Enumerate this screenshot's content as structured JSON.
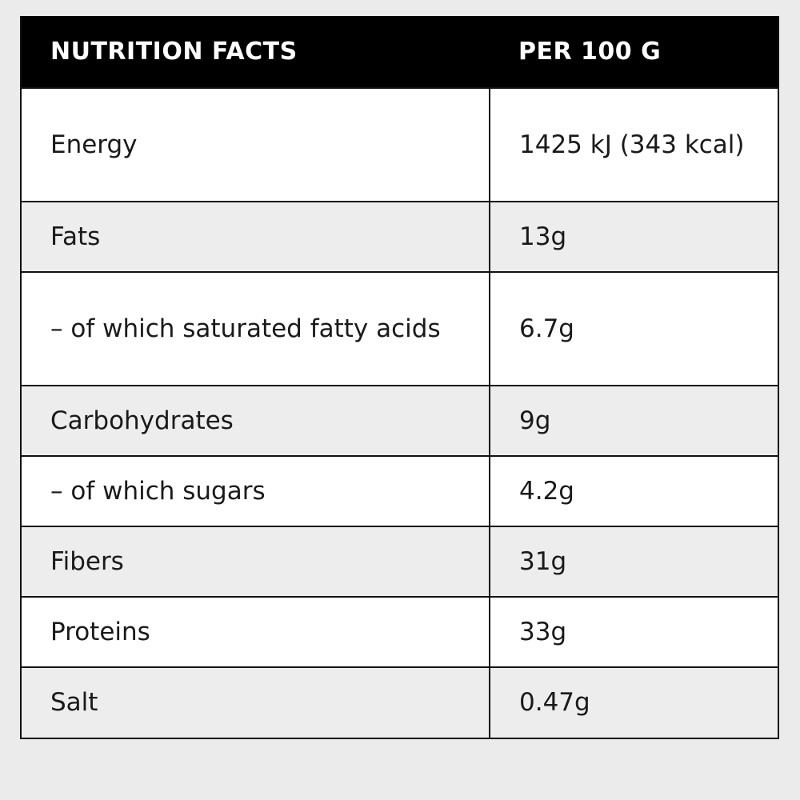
{
  "table": {
    "headers": {
      "nutrient": "NUTRITION FACTS",
      "per": "PER 100 G"
    },
    "rows": [
      {
        "nutrient": "Energy",
        "value": "1425 kJ (343 kcal)"
      },
      {
        "nutrient": "Fats",
        "value": "13g"
      },
      {
        "nutrient": "– of which saturated fatty acids",
        "value": "6.7g"
      },
      {
        "nutrient": "Carbohydrates",
        "value": "9g"
      },
      {
        "nutrient": "– of which sugars",
        "value": "4.2g"
      },
      {
        "nutrient": "Fibers",
        "value": "31g"
      },
      {
        "nutrient": "Proteins",
        "value": "33g"
      },
      {
        "nutrient": "Salt",
        "value": "0.47g"
      }
    ]
  },
  "colors": {
    "header_bg": "#000000",
    "header_text": "#ffffff",
    "row_white": "#ffffff",
    "row_grey": "#ededed",
    "page_bg": "#ebebeb"
  }
}
